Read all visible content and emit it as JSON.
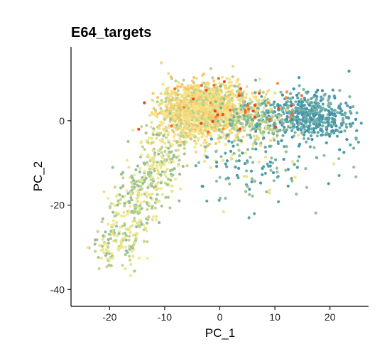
{
  "chart_data": {
    "type": "scatter",
    "title": "E64_targets",
    "xlabel": "PC_1",
    "ylabel": "PC_2",
    "xlim": [
      -27,
      27
    ],
    "ylim": [
      -44,
      17.5
    ],
    "x_ticks": [
      -20,
      -10,
      0,
      10,
      20
    ],
    "y_ticks": [
      -40,
      -20,
      0
    ],
    "grid": false,
    "legend": "none",
    "color_scale": [
      "#1b86b4",
      "#5fa8a7",
      "#a7c98d",
      "#f4e78a",
      "#fbb04f",
      "#f04a2a"
    ],
    "point_clusters": [
      {
        "region": "main-dense",
        "center": [
          -3,
          2.5
        ],
        "spread": [
          5.5,
          4.5
        ],
        "count": 1500,
        "palette": [
          "#f7e083",
          "#fbe48a",
          "#fdd575",
          "#f9c567",
          "#e6df86",
          "#b9d18d"
        ]
      },
      {
        "region": "right-tail",
        "center": [
          16,
          1.5
        ],
        "spread": [
          6.5,
          3.8
        ],
        "count": 520,
        "palette": [
          "#5aa3a8",
          "#6fb0a6",
          "#4b98ac",
          "#7fb8a2",
          "#3d8eb0"
        ]
      },
      {
        "region": "bridge",
        "center": [
          6,
          1
        ],
        "spread": [
          4,
          4.5
        ],
        "count": 260,
        "palette": [
          "#8fbf98",
          "#6fae9f",
          "#b7d08f",
          "#e8e08a"
        ]
      },
      {
        "region": "left-arm",
        "center": [
          -14,
          -18
        ],
        "spread": [
          3.5,
          8
        ],
        "count": 520,
        "palette": [
          "#e9e58e",
          "#c5d68e",
          "#a7c98d",
          "#f3e88d",
          "#95c09a"
        ]
      },
      {
        "region": "scattered",
        "center": [
          6,
          -10
        ],
        "spread": [
          9,
          7
        ],
        "count": 160,
        "palette": [
          "#5fa8a7",
          "#8fbf98",
          "#e9e58e",
          "#4b98ac"
        ]
      },
      {
        "region": "hot-points",
        "center": [
          4,
          2
        ],
        "spread": [
          10,
          5
        ],
        "count": 45,
        "palette": [
          "#f04a2a",
          "#f2692f",
          "#fa8d3c",
          "#e84326"
        ]
      }
    ],
    "x_range_points": [
      -24,
      26
    ],
    "y_range_points": [
      -41.5,
      14
    ]
  }
}
